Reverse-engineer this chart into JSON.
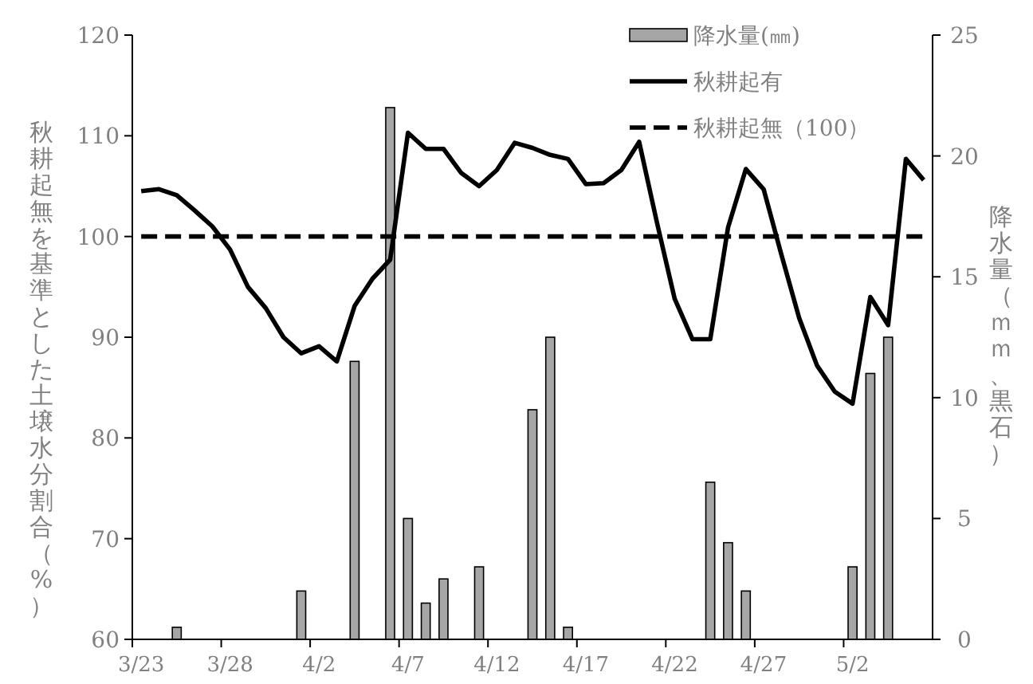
{
  "chart_data": {
    "type": "line",
    "ylabel": "秋耕起無を基準とした土壌水分割合（%）",
    "y2label": "降水量（ｍｍ、黒石）",
    "categories": [
      "3/23",
      null,
      null,
      null,
      null,
      "3/28",
      null,
      null,
      null,
      null,
      "4/2",
      null,
      null,
      null,
      null,
      "4/7",
      null,
      null,
      null,
      null,
      "4/12",
      null,
      null,
      null,
      null,
      "4/17",
      null,
      null,
      null,
      null,
      "4/22",
      null,
      null,
      null,
      null,
      "4/27",
      null,
      null,
      null,
      null,
      "5/2",
      null,
      null,
      null,
      null
    ],
    "series": [
      {
        "name": "降水量(㎜)",
        "type": "bar",
        "axis": "y2",
        "color": "#a6a6a6",
        "values": [
          0,
          0,
          0.5,
          0,
          0,
          0,
          0,
          0,
          0,
          2.0,
          0,
          0,
          11.5,
          0,
          22.0,
          5.0,
          1.5,
          2.5,
          0,
          3.0,
          0,
          0,
          9.5,
          12.5,
          0.5,
          0,
          0,
          0,
          0,
          0,
          0,
          0,
          6.5,
          4.0,
          2.0,
          0,
          0,
          0,
          0,
          0,
          3.0,
          11.0,
          12.5,
          0,
          0
        ]
      },
      {
        "name": "秋耕起有",
        "color": "#000000",
        "line_style": "solid",
        "values": [
          104.5,
          104.7,
          104.1,
          102.6,
          101.0,
          98.7,
          95.0,
          92.9,
          90.0,
          88.4,
          89.1,
          87.6,
          93.1,
          95.8,
          97.7,
          110.3,
          108.7,
          108.7,
          106.3,
          105.0,
          106.6,
          109.3,
          108.8,
          108.1,
          107.7,
          105.2,
          105.3,
          106.6,
          109.4,
          101.4,
          93.8,
          89.8,
          89.8,
          100.9,
          106.7,
          104.7,
          98.2,
          91.9,
          87.2,
          84.6,
          83.4,
          94.0,
          91.2,
          107.7,
          105.6
        ]
      },
      {
        "name": "秋耕起無（100）",
        "color": "#000000",
        "line_style": "dashed",
        "values": [
          100,
          100,
          100,
          100,
          100,
          100,
          100,
          100,
          100,
          100,
          100,
          100,
          100,
          100,
          100,
          100,
          100,
          100,
          100,
          100,
          100,
          100,
          100,
          100,
          100,
          100,
          100,
          100,
          100,
          100,
          100,
          100,
          100,
          100,
          100,
          100,
          100,
          100,
          100,
          100,
          100,
          100,
          100,
          100,
          100
        ]
      }
    ],
    "ylim": [
      60,
      120
    ],
    "yticks": [
      60,
      70,
      80,
      90,
      100,
      110,
      120
    ],
    "y2lim": [
      0,
      25
    ],
    "y2ticks": [
      0,
      5,
      10,
      15,
      20,
      25
    ],
    "grid": false,
    "legend": "top right",
    "marker": "none"
  }
}
